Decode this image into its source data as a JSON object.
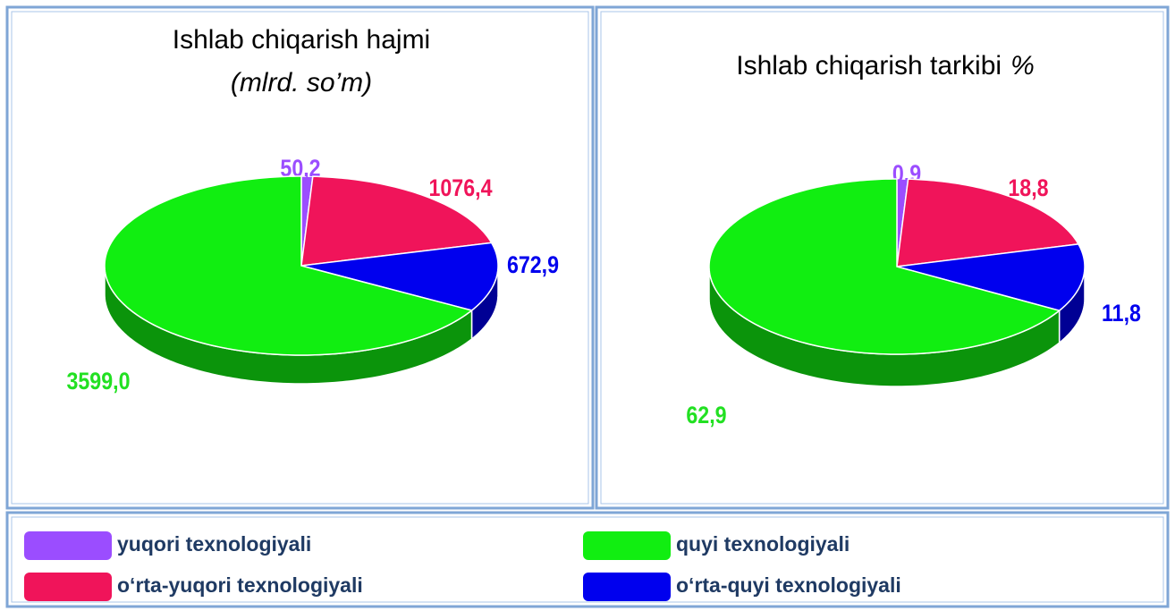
{
  "chart_data": [
    {
      "type": "pie",
      "title": "Ishlab chiqarish hajmi",
      "subtitle": "(mlrd. so’m)",
      "values": [
        50.2,
        1076.4,
        672.9,
        3599.0
      ],
      "value_labels": [
        "50,2",
        "1076,4",
        "672,9",
        "3599,0"
      ]
    },
    {
      "type": "pie",
      "title": "Ishlab chiqarish tarkibi",
      "subtitle": "%",
      "values": [
        0.9,
        18.8,
        11.8,
        62.9
      ],
      "value_labels": [
        "0,9",
        "18,8",
        "11,8",
        "62,9"
      ]
    }
  ],
  "legend": {
    "items": [
      {
        "name": "yuqori texnologiyali",
        "color": "#9b4dff"
      },
      {
        "name": "o‘rta-yuqori texnologiyali",
        "color": "#f0145a"
      },
      {
        "name": "o‘rta-quyi texnologiyali",
        "color": "#0000ee"
      },
      {
        "name": "quyi texnologiyali",
        "color": "#11ee11"
      }
    ]
  }
}
